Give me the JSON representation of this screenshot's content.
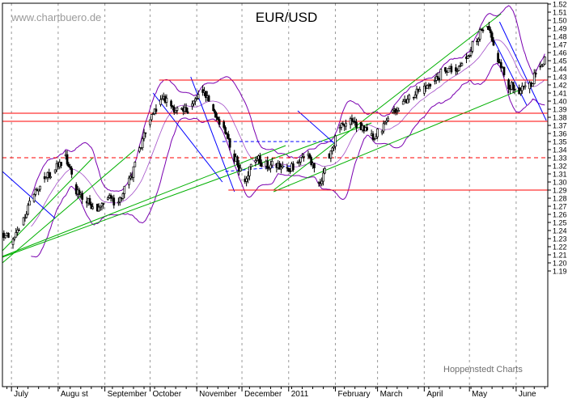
{
  "watermark": "www.chartbuero.de",
  "source_label": "Hoppenstedt Charts",
  "colors": {
    "background": "#ffffff",
    "grid": "#9a9a9a",
    "candle": "#000000",
    "horizontal_lines": "#ff0000",
    "bollinger": "#7a00b0",
    "trend_up": "#00b000",
    "trend_down": "#0000ff",
    "watermark": "#9a9a9a",
    "source": "#707070"
  },
  "chart_data": {
    "type": "candlestick",
    "title": "EUR/USD",
    "ylim": [
      1.175,
      1.525
    ],
    "y_ticks": [
      "1.19",
      "1.20",
      "1.21",
      "1.22",
      "1.23",
      "1.24",
      "1.25",
      "1.26",
      "1.27",
      "1.28",
      "1.29",
      "1.30",
      "1.31",
      "1.32",
      "1.33",
      "1.34",
      "1.35",
      "1.36",
      "1.37",
      "1.38",
      "1.39",
      "1.40",
      "1.41",
      "1.42",
      "1.43",
      "1.44",
      "1.45",
      "1.46",
      "1.47",
      "1.48",
      "1.49",
      "1.50",
      "1.51",
      "1.52"
    ],
    "x_labels": [
      "July",
      "August",
      "September",
      "October",
      "November",
      "December",
      "2011",
      "February",
      "March",
      "April",
      "May",
      "June"
    ],
    "x_label_text": [
      "July",
      "Augu st",
      "September",
      "October",
      "November",
      "December",
      "2011",
      "February",
      "March",
      "April",
      "May",
      "June"
    ],
    "approx_weekly_close": [
      {
        "w": 0,
        "v": 1.235
      },
      {
        "w": 1,
        "v": 1.225
      },
      {
        "w": 2,
        "v": 1.255
      },
      {
        "w": 3,
        "v": 1.285
      },
      {
        "w": 4,
        "v": 1.305
      },
      {
        "w": 5,
        "v": 1.315
      },
      {
        "w": 6,
        "v": 1.33
      },
      {
        "w": 7,
        "v": 1.29
      },
      {
        "w": 8,
        "v": 1.275
      },
      {
        "w": 9,
        "v": 1.27
      },
      {
        "w": 10,
        "v": 1.28
      },
      {
        "w": 11,
        "v": 1.275
      },
      {
        "w": 12,
        "v": 1.3
      },
      {
        "w": 13,
        "v": 1.34
      },
      {
        "w": 14,
        "v": 1.375
      },
      {
        "w": 15,
        "v": 1.405
      },
      {
        "w": 16,
        "v": 1.395
      },
      {
        "w": 17,
        "v": 1.385
      },
      {
        "w": 18,
        "v": 1.395
      },
      {
        "w": 19,
        "v": 1.415
      },
      {
        "w": 20,
        "v": 1.39
      },
      {
        "w": 21,
        "v": 1.365
      },
      {
        "w": 22,
        "v": 1.33
      },
      {
        "w": 23,
        "v": 1.305
      },
      {
        "w": 24,
        "v": 1.33
      },
      {
        "w": 25,
        "v": 1.32
      },
      {
        "w": 26,
        "v": 1.32
      },
      {
        "w": 27,
        "v": 1.315
      },
      {
        "w": 28,
        "v": 1.325
      },
      {
        "w": 29,
        "v": 1.335
      },
      {
        "w": 30,
        "v": 1.295
      },
      {
        "w": 31,
        "v": 1.335
      },
      {
        "w": 32,
        "v": 1.365
      },
      {
        "w": 33,
        "v": 1.375
      },
      {
        "w": 34,
        "v": 1.37
      },
      {
        "w": 35,
        "v": 1.355
      },
      {
        "w": 36,
        "v": 1.365
      },
      {
        "w": 37,
        "v": 1.385
      },
      {
        "w": 38,
        "v": 1.4
      },
      {
        "w": 39,
        "v": 1.41
      },
      {
        "w": 40,
        "v": 1.415
      },
      {
        "w": 41,
        "v": 1.425
      },
      {
        "w": 42,
        "v": 1.44
      },
      {
        "w": 43,
        "v": 1.435
      },
      {
        "w": 44,
        "v": 1.455
      },
      {
        "w": 45,
        "v": 1.48
      },
      {
        "w": 46,
        "v": 1.49
      },
      {
        "w": 47,
        "v": 1.45
      },
      {
        "w": 48,
        "v": 1.42
      },
      {
        "w": 49,
        "v": 1.41
      },
      {
        "w": 50,
        "v": 1.42
      },
      {
        "w": 51,
        "v": 1.445
      },
      {
        "w": 52,
        "v": 1.465
      }
    ],
    "horizontal_levels": [
      {
        "value": 1.426,
        "style": "solid"
      },
      {
        "value": 1.385,
        "style": "solid"
      },
      {
        "value": 1.375,
        "style": "solid"
      },
      {
        "value": 1.33,
        "style": "dashed"
      },
      {
        "value": 1.29,
        "style": "solid"
      }
    ],
    "grid": true,
    "legend": "none"
  }
}
